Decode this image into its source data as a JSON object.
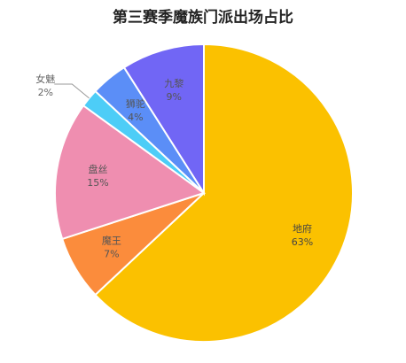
{
  "chart_data": {
    "type": "pie",
    "title": "第三赛季魔族门派出场占比",
    "categories": [
      "地府",
      "魔王",
      "盘丝",
      "女魅",
      "狮驼",
      "九黎"
    ],
    "values": [
      63,
      7,
      15,
      2,
      4,
      9
    ],
    "value_labels": [
      "63%",
      "7%",
      "15%",
      "2%",
      "4%",
      "9%"
    ],
    "colors": [
      "#fbc100",
      "#fb8c3c",
      "#ef8eb0",
      "#4dcdf7",
      "#5b8ef7",
      "#7166f5"
    ]
  }
}
